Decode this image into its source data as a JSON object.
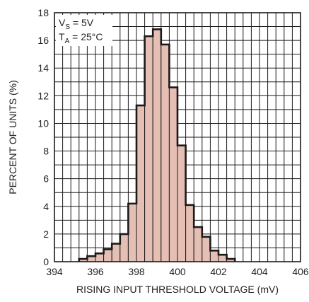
{
  "chart_data": {
    "type": "bar",
    "xlabel": "RISING INPUT THRESHOLD VOLTAGE (mV)",
    "ylabel": "PERCENT OF UNITS (%)",
    "xlim": [
      394,
      406
    ],
    "ylim": [
      0,
      18
    ],
    "x_ticks": [
      "394",
      "396",
      "398",
      "400",
      "402",
      "404",
      "406"
    ],
    "y_ticks": [
      "0",
      "2",
      "4",
      "6",
      "8",
      "10",
      "12",
      "14",
      "16",
      "18"
    ],
    "bin_width": 0.4,
    "bins": [
      {
        "x": 395.2,
        "value": 0.2
      },
      {
        "x": 395.6,
        "value": 0.4
      },
      {
        "x": 396.0,
        "value": 0.6
      },
      {
        "x": 396.4,
        "value": 0.9
      },
      {
        "x": 396.8,
        "value": 1.3
      },
      {
        "x": 397.2,
        "value": 2.0
      },
      {
        "x": 397.6,
        "value": 4.2
      },
      {
        "x": 398.0,
        "value": 11.3
      },
      {
        "x": 398.4,
        "value": 16.3
      },
      {
        "x": 398.8,
        "value": 16.8
      },
      {
        "x": 399.2,
        "value": 15.7
      },
      {
        "x": 399.6,
        "value": 12.6
      },
      {
        "x": 400.0,
        "value": 8.4
      },
      {
        "x": 400.4,
        "value": 4.1
      },
      {
        "x": 400.8,
        "value": 2.5
      },
      {
        "x": 401.2,
        "value": 1.8
      },
      {
        "x": 401.6,
        "value": 0.8
      },
      {
        "x": 402.0,
        "value": 0.5
      },
      {
        "x": 402.4,
        "value": 0.2
      }
    ],
    "grid": true,
    "bar_fill": "#e5beb4",
    "outline_color": "#1a1a1a",
    "grid_color": "#1a1a1a",
    "annotation": {
      "line1_main": "V",
      "line1_sub": "S",
      "line1_rest": " = 5V",
      "line2_main": "T",
      "line2_sub": "A",
      "line2_rest": " = 25°C"
    }
  }
}
